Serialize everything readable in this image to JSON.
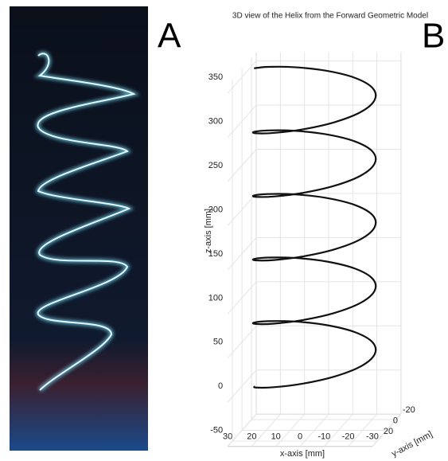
{
  "panel_labels": [
    "A",
    "B"
  ],
  "chart_data": {
    "type": "helix",
    "title": "3D view of the Helix from the Forward Geometric Model",
    "xlabel": "x-axis [mm]",
    "ylabel": "y-axis [mm]",
    "zlabel": "z-axis [mm]",
    "color": "#111111",
    "xlim": [
      -30,
      30
    ],
    "ylim": [
      -30,
      30
    ],
    "zlim": [
      -50,
      360
    ],
    "xticks": [
      30,
      20,
      10,
      0,
      -10,
      -20,
      -30
    ],
    "yticks": [
      -20,
      0,
      20
    ],
    "zticks": [
      -50,
      0,
      50,
      100,
      150,
      200,
      250,
      300,
      350
    ],
    "grid": true,
    "x": [
      25,
      21.7,
      12.5,
      0,
      -12.5,
      -21.7,
      -25,
      -21.7,
      -12.5,
      0,
      12.5,
      21.7,
      25,
      21.7,
      12.5,
      0,
      -12.5,
      -21.7,
      -25,
      -21.7,
      -12.5,
      0,
      12.5,
      21.7,
      25,
      21.7,
      12.5,
      0,
      -12.5,
      -21.7,
      -25,
      -21.7,
      -12.5,
      0,
      12.5,
      21.7,
      25,
      21.7,
      12.5,
      0,
      -12.5,
      -21.7,
      -25,
      -21.7,
      -12.5,
      0,
      12.5,
      21.7,
      25,
      21.7,
      12.5,
      0,
      -12.5,
      -21.7,
      -25,
      -21.7,
      -12.5,
      0,
      12.5,
      21.7,
      25
    ],
    "y": [
      0,
      12.5,
      21.7,
      25,
      21.7,
      12.5,
      0,
      -12.5,
      -21.7,
      -25,
      -21.7,
      -12.5,
      0,
      12.5,
      21.7,
      25,
      21.7,
      12.5,
      0,
      -12.5,
      -21.7,
      -25,
      -21.7,
      -12.5,
      0,
      12.5,
      21.7,
      25,
      21.7,
      12.5,
      0,
      -12.5,
      -21.7,
      -25,
      -21.7,
      -12.5,
      0,
      12.5,
      21.7,
      25,
      21.7,
      12.5,
      0,
      -12.5,
      -21.7,
      -25,
      -21.7,
      -12.5,
      0,
      12.5,
      21.7,
      25,
      21.7,
      12.5,
      0,
      -12.5,
      -21.7,
      -25,
      -21.7,
      -12.5,
      0
    ],
    "z": [
      0,
      6,
      12,
      18,
      24,
      30,
      36,
      42,
      48,
      54,
      60,
      66,
      72,
      78,
      84,
      90,
      96,
      102,
      108,
      114,
      120,
      126,
      132,
      138,
      144,
      150,
      156,
      162,
      168,
      174,
      180,
      186,
      192,
      198,
      204,
      210,
      216,
      222,
      228,
      234,
      240,
      246,
      252,
      258,
      264,
      270,
      276,
      282,
      288,
      294,
      300,
      306,
      312,
      318,
      324,
      330,
      336,
      342,
      348,
      354,
      360
    ]
  }
}
